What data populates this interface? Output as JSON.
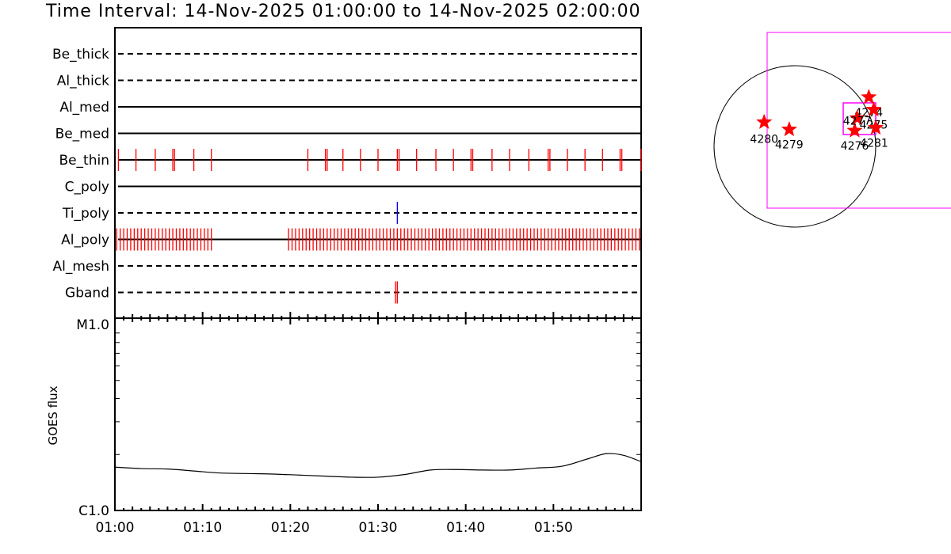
{
  "title": "Time Interval: 14-Nov-2025 01:00:00 to 14-Nov-2025 02:00:00",
  "chart_data": [
    {
      "type": "event-timeline",
      "x_range": [
        "01:00",
        "02:00"
      ],
      "rows": [
        {
          "name": "Be_thick",
          "style": "dashed",
          "events": []
        },
        {
          "name": "Al_thick",
          "style": "dashed",
          "events": []
        },
        {
          "name": "Al_med",
          "style": "solid",
          "events": []
        },
        {
          "name": "Be_med",
          "style": "solid",
          "events": []
        },
        {
          "name": "Be_thin",
          "style": "solid",
          "color": "#ff0000",
          "events": [
            0.4,
            2.4,
            4.6,
            6.6,
            6.8,
            9.0,
            11.0,
            22.0,
            24.0,
            24.2,
            26.0,
            28.0,
            30.0,
            32.2,
            32.4,
            34.4,
            36.6,
            38.6,
            40.6,
            40.8,
            43.0,
            45.0,
            47.2,
            49.4,
            49.6,
            51.6,
            53.6,
            55.6,
            57.6,
            57.8,
            60.0
          ]
        },
        {
          "name": "C_poly",
          "style": "solid",
          "events": []
        },
        {
          "name": "Ti_poly",
          "style": "dashed",
          "color": "#0000ff",
          "events": [
            32.2
          ]
        },
        {
          "name": "Al_poly",
          "style": "solid",
          "color": "#ff0000",
          "events": [
            0.2,
            0.6,
            1.0,
            1.4,
            1.8,
            2.2,
            2.6,
            3.0,
            3.4,
            3.8,
            4.2,
            4.6,
            5.0,
            5.4,
            5.8,
            6.2,
            6.6,
            7.0,
            7.4,
            7.8,
            8.2,
            8.6,
            9.0,
            9.4,
            9.8,
            10.2,
            10.6,
            11.0,
            19.8,
            20.2,
            20.6,
            21.0,
            21.4,
            21.8,
            22.2,
            22.6,
            23.0,
            23.4,
            23.8,
            24.2,
            24.6,
            25.0,
            25.4,
            25.8,
            26.2,
            26.6,
            27.0,
            27.4,
            27.8,
            28.2,
            28.6,
            29.0,
            29.4,
            29.8,
            30.2,
            30.6,
            31.0,
            31.4,
            31.8,
            32.2,
            32.6,
            33.0,
            33.4,
            33.8,
            34.2,
            34.6,
            35.0,
            35.4,
            35.8,
            36.2,
            36.6,
            37.0,
            37.4,
            37.8,
            38.2,
            38.6,
            39.0,
            39.4,
            39.8,
            40.2,
            40.6,
            41.0,
            41.4,
            41.8,
            42.2,
            42.6,
            43.0,
            43.4,
            43.8,
            44.2,
            44.6,
            45.0,
            45.4,
            45.8,
            46.2,
            46.6,
            47.0,
            47.4,
            47.8,
            48.2,
            48.6,
            49.0,
            49.4,
            49.8,
            50.2,
            50.6,
            51.0,
            51.4,
            51.8,
            52.2,
            52.6,
            53.0,
            53.4,
            53.8,
            54.2,
            54.6,
            55.0,
            55.4,
            55.8,
            56.2,
            56.6,
            57.0,
            57.4,
            57.8,
            58.2,
            58.6,
            59.0,
            59.4,
            59.8
          ]
        },
        {
          "name": "Al_mesh",
          "style": "dashed",
          "events": []
        },
        {
          "name": "Gband",
          "style": "dashed",
          "color": "#ff0000",
          "events": [
            32.0,
            32.2
          ]
        }
      ]
    },
    {
      "type": "line",
      "ylabel": "GOES flux",
      "y_ticks": [
        "M1.0",
        "C1.0"
      ],
      "y_scale": "log",
      "ylim": [
        1e-06,
        1e-05
      ],
      "x_ticks": [
        "01:00",
        "01:10",
        "01:20",
        "01:30",
        "01:40",
        "01:50"
      ],
      "series": [
        {
          "x": [
            0,
            3,
            6,
            9,
            12,
            15,
            18,
            21,
            24,
            27,
            30,
            33,
            36,
            39,
            42,
            45,
            48,
            51,
            54,
            56,
            58,
            60
          ],
          "y": [
            1.71e-06,
            1.68e-06,
            1.67e-06,
            1.63e-06,
            1.59e-06,
            1.58e-06,
            1.57e-06,
            1.55e-06,
            1.53e-06,
            1.51e-06,
            1.51e-06,
            1.56e-06,
            1.65e-06,
            1.66e-06,
            1.65e-06,
            1.65e-06,
            1.69e-06,
            1.73e-06,
            1.9e-06,
            2.02e-06,
            1.98e-06,
            1.83e-06
          ]
        }
      ]
    },
    {
      "type": "scatter",
      "description_key": "solar disk locator",
      "points": [
        {
          "label": "4274",
          "x": 0.915,
          "y": 0.61
        },
        {
          "label": "4275",
          "x": 0.975,
          "y": 0.455
        },
        {
          "label": "4276",
          "x": 0.74,
          "y": 0.195
        },
        {
          "label": "4277",
          "x": 0.77,
          "y": 0.35
        },
        {
          "label": "4279",
          "x": -0.07,
          "y": 0.21
        },
        {
          "label": "4280",
          "x": -0.38,
          "y": 0.3
        },
        {
          "label": "4281",
          "x": 1.0,
          "y": 0.23
        }
      ]
    }
  ]
}
